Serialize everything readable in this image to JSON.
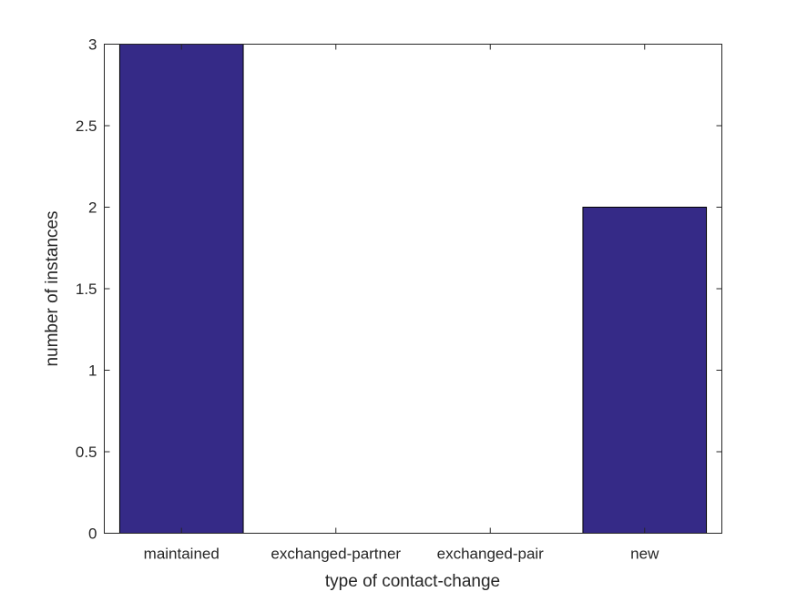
{
  "chart_data": {
    "type": "bar",
    "categories": [
      "maintained",
      "exchanged-partner",
      "exchanged-pair",
      "new"
    ],
    "values": [
      3,
      0,
      0,
      2
    ],
    "title": "",
    "xlabel": "type of contact-change",
    "ylabel": "number of instances",
    "ylim": [
      0,
      3
    ],
    "yticks": [
      0,
      0.5,
      1,
      1.5,
      2,
      2.5,
      3
    ],
    "ytick_labels": [
      "0",
      "0.5",
      "1",
      "1.5",
      "2",
      "2.5",
      "3"
    ],
    "grid": false,
    "bar_color": "#352a87"
  }
}
